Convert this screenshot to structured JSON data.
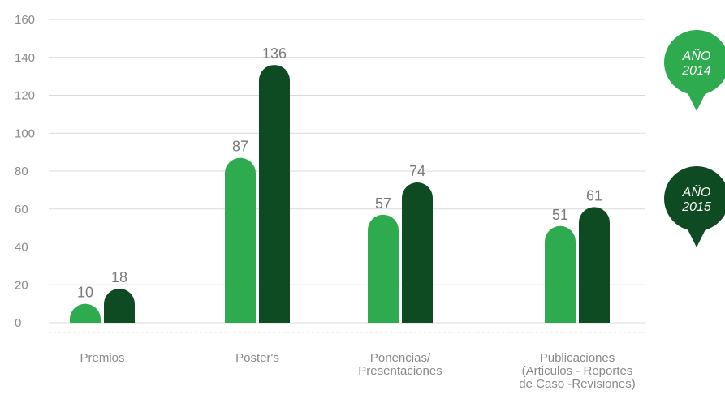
{
  "chart_data": {
    "type": "bar",
    "categories": [
      [
        "Premios"
      ],
      [
        "Poster's"
      ],
      [
        "Ponencias/",
        "Presentaciones"
      ],
      [
        "Publicaciones",
        "(Articulos - Reportes",
        "de Caso -Revisiones)"
      ]
    ],
    "series": [
      {
        "name": "AÑO 2014",
        "legend_lines": [
          "AÑO",
          "2014"
        ],
        "color": "#2eab4f",
        "values": [
          10,
          87,
          57,
          51
        ]
      },
      {
        "name": "AÑO 2015",
        "legend_lines": [
          "AÑO",
          "2015"
        ],
        "color": "#0e4a22",
        "values": [
          18,
          136,
          74,
          61
        ]
      }
    ],
    "yticks": [
      "160",
      "140",
      "120",
      "100",
      "80",
      "60",
      "40",
      "20",
      "0"
    ],
    "ylim": [
      0,
      160
    ],
    "grid": true,
    "legend_position": "right"
  }
}
